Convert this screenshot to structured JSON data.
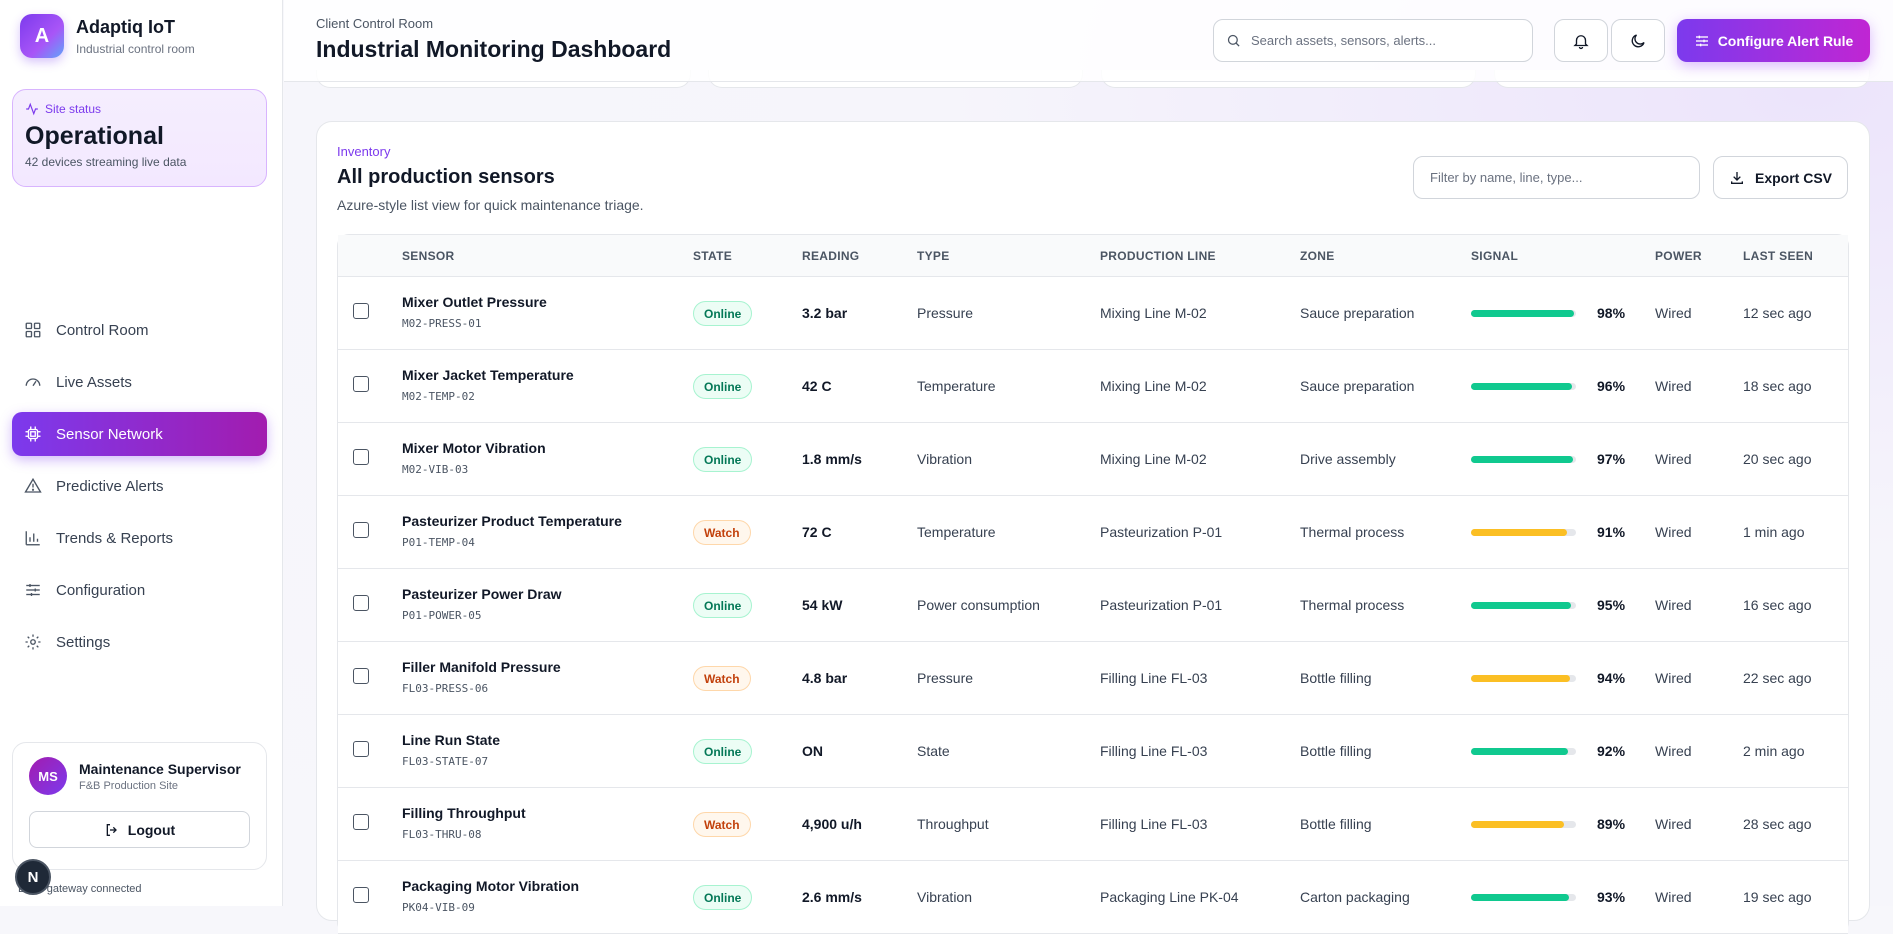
{
  "brand": {
    "logo_letter": "A",
    "name": "Adaptiq IoT",
    "subtitle": "Industrial control room"
  },
  "site_status": {
    "label": "Site status",
    "value": "Operational",
    "description": "42 devices streaming live data"
  },
  "nav": [
    {
      "label": "Control Room",
      "icon": "grid-icon",
      "active": false
    },
    {
      "label": "Live Assets",
      "icon": "gauge-icon",
      "active": false
    },
    {
      "label": "Sensor Network",
      "icon": "chip-icon",
      "active": true
    },
    {
      "label": "Predictive Alerts",
      "icon": "warning-icon",
      "active": false
    },
    {
      "label": "Trends & Reports",
      "icon": "bar-chart-icon",
      "active": false
    },
    {
      "label": "Configuration",
      "icon": "sliders-icon",
      "active": false
    },
    {
      "label": "Settings",
      "icon": "gear-icon",
      "active": false
    }
  ],
  "user": {
    "initials": "MS",
    "name": "Maintenance Supervisor",
    "site": "F&B Production Site",
    "logout_label": "Logout"
  },
  "gateway_status": "Edge gateway connected",
  "floating_badge": "N",
  "header": {
    "breadcrumb": "Client Control Room",
    "title": "Industrial Monitoring Dashboard",
    "search_placeholder": "Search assets, sensors, alerts...",
    "cta_label": "Configure Alert Rule"
  },
  "panel": {
    "eyebrow": "Inventory",
    "title": "All production sensors",
    "description": "Azure-style list view for quick maintenance triage.",
    "filter_placeholder": "Filter by name, line, type...",
    "export_label": "Export CSV"
  },
  "colors": {
    "accent": "#7c3aed",
    "online": "#10c98f",
    "watch": "#fbbf24"
  },
  "table": {
    "columns": [
      "SENSOR",
      "STATE",
      "READING",
      "TYPE",
      "PRODUCTION LINE",
      "ZONE",
      "SIGNAL",
      "POWER",
      "LAST SEEN"
    ],
    "rows": [
      {
        "name": "Mixer Outlet Pressure",
        "id": "M02-PRESS-01",
        "state": "Online",
        "reading": "3.2 bar",
        "type": "Pressure",
        "line": "Mixing Line M-02",
        "zone": "Sauce preparation",
        "signal": 98,
        "signal_label": "98%",
        "power": "Wired",
        "last_seen": "12 sec ago"
      },
      {
        "name": "Mixer Jacket Temperature",
        "id": "M02-TEMP-02",
        "state": "Online",
        "reading": "42 C",
        "type": "Temperature",
        "line": "Mixing Line M-02",
        "zone": "Sauce preparation",
        "signal": 96,
        "signal_label": "96%",
        "power": "Wired",
        "last_seen": "18 sec ago"
      },
      {
        "name": "Mixer Motor Vibration",
        "id": "M02-VIB-03",
        "state": "Online",
        "reading": "1.8 mm/s",
        "type": "Vibration",
        "line": "Mixing Line M-02",
        "zone": "Drive assembly",
        "signal": 97,
        "signal_label": "97%",
        "power": "Wired",
        "last_seen": "20 sec ago"
      },
      {
        "name": "Pasteurizer Product Temperature",
        "id": "P01-TEMP-04",
        "state": "Watch",
        "reading": "72 C",
        "type": "Temperature",
        "line": "Pasteurization P-01",
        "zone": "Thermal process",
        "signal": 91,
        "signal_label": "91%",
        "power": "Wired",
        "last_seen": "1 min ago"
      },
      {
        "name": "Pasteurizer Power Draw",
        "id": "P01-POWER-05",
        "state": "Online",
        "reading": "54 kW",
        "type": "Power consumption",
        "line": "Pasteurization P-01",
        "zone": "Thermal process",
        "signal": 95,
        "signal_label": "95%",
        "power": "Wired",
        "last_seen": "16 sec ago"
      },
      {
        "name": "Filler Manifold Pressure",
        "id": "FL03-PRESS-06",
        "state": "Watch",
        "reading": "4.8 bar",
        "type": "Pressure",
        "line": "Filling Line FL-03",
        "zone": "Bottle filling",
        "signal": 94,
        "signal_label": "94%",
        "power": "Wired",
        "last_seen": "22 sec ago"
      },
      {
        "name": "Line Run State",
        "id": "FL03-STATE-07",
        "state": "Online",
        "reading": "ON",
        "type": "State",
        "line": "Filling Line FL-03",
        "zone": "Bottle filling",
        "signal": 92,
        "signal_label": "92%",
        "power": "Wired",
        "last_seen": "2 min ago"
      },
      {
        "name": "Filling Throughput",
        "id": "FL03-THRU-08",
        "state": "Watch",
        "reading": "4,900 u/h",
        "type": "Throughput",
        "line": "Filling Line FL-03",
        "zone": "Bottle filling",
        "signal": 89,
        "signal_label": "89%",
        "power": "Wired",
        "last_seen": "28 sec ago"
      },
      {
        "name": "Packaging Motor Vibration",
        "id": "PK04-VIB-09",
        "state": "Online",
        "reading": "2.6 mm/s",
        "type": "Vibration",
        "line": "Packaging Line PK-04",
        "zone": "Carton packaging",
        "signal": 93,
        "signal_label": "93%",
        "power": "Wired",
        "last_seen": "19 sec ago"
      }
    ]
  }
}
